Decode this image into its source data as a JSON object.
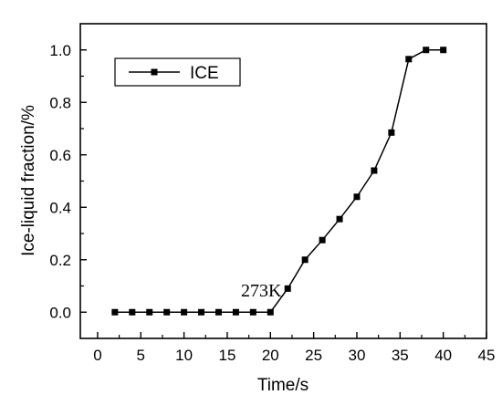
{
  "chart_data": {
    "type": "line",
    "xlabel": "Time/s",
    "ylabel": "Ice-liquid fraction/%",
    "xlim": [
      -2,
      45
    ],
    "ylim": [
      -0.1,
      1.1
    ],
    "xticks": [
      "0",
      "5",
      "10",
      "15",
      "20",
      "25",
      "30",
      "35",
      "40",
      "45"
    ],
    "yticks": [
      "0.0",
      "0.2",
      "0.4",
      "0.6",
      "0.8",
      "1.0"
    ],
    "legend": {
      "position": "top-left",
      "entries": [
        "ICE"
      ]
    },
    "grid": false,
    "series": [
      {
        "name": "ICE",
        "color": "#000000",
        "marker": "square",
        "x": [
          2,
          4,
          6,
          8,
          10,
          12,
          14,
          16,
          18,
          20,
          22,
          24,
          26,
          28,
          30,
          32,
          34,
          36,
          38,
          40
        ],
        "y": [
          0,
          0,
          0,
          0,
          0,
          0,
          0,
          0,
          0,
          0,
          0.09,
          0.2,
          0.275,
          0.355,
          0.44,
          0.54,
          0.685,
          0.965,
          1.0,
          1.0
        ]
      }
    ],
    "annotations": [
      {
        "text": "273K",
        "x": 22,
        "y": 0.09
      }
    ]
  }
}
